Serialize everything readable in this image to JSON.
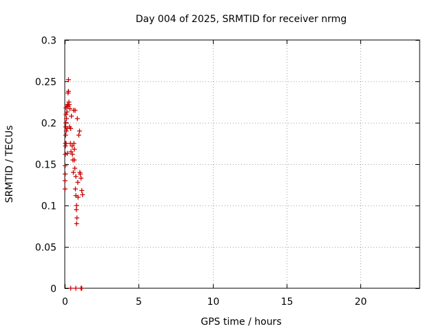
{
  "chart_data": {
    "type": "scatter",
    "title": "Day 004 of 2025, SRMTID for receiver nrmg",
    "xlabel": "GPS time / hours",
    "ylabel": "SRMTID / TECUs",
    "xlim": [
      0,
      24
    ],
    "ylim": [
      0,
      0.3
    ],
    "xticks": [
      0,
      5,
      10,
      15,
      20
    ],
    "xtick_labels": [
      "0",
      "5",
      "10",
      "15",
      "20"
    ],
    "yticks": [
      0,
      0.05,
      0.1,
      0.15,
      0.2,
      0.25,
      0.3
    ],
    "ytick_labels": [
      "0",
      "0.05",
      "0.1",
      "0.15",
      "0.2",
      "0.25",
      "0.3"
    ],
    "grid": true,
    "marker": "+",
    "series": [
      {
        "name": "SRMTID",
        "color": "#cc0000",
        "x": [
          0.02,
          0.02,
          0.03,
          0.03,
          0.04,
          0.05,
          0.05,
          0.06,
          0.06,
          0.07,
          0.08,
          0.08,
          0.09,
          0.1,
          0.12,
          0.14,
          0.15,
          0.16,
          0.18,
          0.2,
          0.22,
          0.23,
          0.25,
          0.25,
          0.28,
          0.3,
          0.32,
          0.35,
          0.38,
          0.4,
          0.42,
          0.45,
          0.5,
          0.52,
          0.55,
          0.58,
          0.6,
          0.62,
          0.65,
          0.65,
          0.68,
          0.7,
          0.72,
          0.75,
          0.75,
          0.78,
          0.8,
          0.8,
          0.82,
          0.85,
          0.88,
          0.9,
          0.95,
          1.0,
          1.02,
          1.05,
          1.1,
          1.15,
          1.2,
          0.4,
          0.75,
          1.1,
          1.15
        ],
        "y": [
          0.12,
          0.13,
          0.138,
          0.148,
          0.162,
          0.172,
          0.175,
          0.185,
          0.195,
          0.2,
          0.21,
          0.218,
          0.175,
          0.19,
          0.205,
          0.22,
          0.213,
          0.193,
          0.163,
          0.222,
          0.236,
          0.22,
          0.238,
          0.252,
          0.225,
          0.222,
          0.195,
          0.217,
          0.175,
          0.193,
          0.165,
          0.208,
          0.172,
          0.162,
          0.155,
          0.14,
          0.215,
          0.175,
          0.168,
          0.155,
          0.145,
          0.215,
          0.12,
          0.112,
          0.135,
          0.095,
          0.1,
          0.078,
          0.085,
          0.205,
          0.128,
          0.11,
          0.185,
          0.19,
          0.14,
          0.138,
          0.133,
          0.118,
          0.113,
          0.0,
          0.0,
          0.0,
          0.0
        ]
      }
    ]
  }
}
